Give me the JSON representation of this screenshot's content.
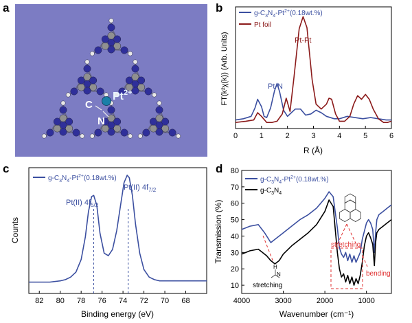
{
  "panels": {
    "a": {
      "letter": "a",
      "atom_labels": {
        "c": "C",
        "n": "N",
        "pt": "Pt",
        "pt_charge": "2+"
      },
      "colors": {
        "bg": "#7c7cc3",
        "n_atom": "#2f2f9a",
        "c_atom": "#909090",
        "h_atom": "#e8e8e8",
        "pt_atom": "#1a7fa8",
        "pt_label": "#e8f4ff"
      }
    },
    "b": {
      "letter": "b",
      "ylabel": "FT(k²χ(k)) (Arb. Units)",
      "xlabel": "R (Å)",
      "legend": {
        "s1_prefix": "g-C",
        "s1_sub1": "3",
        "s1_mid": "N",
        "s1_sub2": "4",
        "s1_mid2": "-Pt",
        "s1_sup": "2+",
        "s1_suffix": "(0.18wt.%)",
        "s2": "Pt foil"
      },
      "annotations": {
        "ptn": "Pt-N",
        "ptpt": "Pt-Pt"
      }
    },
    "c": {
      "letter": "c",
      "ylabel": "Counts",
      "xlabel": "Binding energy (eV)",
      "legend": {
        "s1_prefix": "g-C",
        "s1_sub1": "3",
        "s1_mid": "N",
        "s1_sub2": "4",
        "s1_mid2": "-Pt",
        "s1_sup": "2+",
        "s1_suffix": "(0.18wt.%)"
      },
      "annotations": {
        "p1_main": "Pt(II) 4f",
        "p1_sub": "5/2",
        "p2_main": "Pt(II) 4f",
        "p2_sub": "7/2"
      }
    },
    "d": {
      "letter": "d",
      "ylabel": "Transmission (%)",
      "xlabel": "Wavenumber (cm⁻¹)",
      "legend": {
        "s1_prefix": "g-C",
        "s1_sub1": "3",
        "s1_mid": "N",
        "s1_sub2": "4",
        "s1_mid2": "-Pt",
        "s1_sup": "2+",
        "s1_suffix": "(0.18wt.%)",
        "s2_prefix": "g-C",
        "s2_sub1": "3",
        "s2_mid": "N",
        "s2_sub2": "4"
      },
      "annotations": {
        "stretch1": "stretching",
        "stretch2": "stretching",
        "bending": "bending",
        "nh_n": "N",
        "nh_h": "H"
      }
    }
  },
  "chart_data": [
    {
      "panel": "b",
      "type": "line",
      "xlim": [
        0,
        6
      ],
      "ylim": [
        0,
        1
      ],
      "x_ticks": [
        0,
        1,
        2,
        3,
        4,
        5,
        6
      ],
      "y_ticks": [],
      "series": [
        {
          "name": "g-C3N4-Pt2+(0.18wt.%)",
          "color": "#3b4fa0",
          "x": [
            0.0,
            0.3,
            0.6,
            0.75,
            0.85,
            1.0,
            1.1,
            1.2,
            1.35,
            1.5,
            1.6,
            1.7,
            1.85,
            2.0,
            2.15,
            2.3,
            2.5,
            2.7,
            2.9,
            3.1,
            3.3,
            3.5,
            3.8,
            4.0,
            4.3,
            4.6,
            4.9,
            5.2,
            5.5,
            5.8,
            6.0
          ],
          "y": [
            0.07,
            0.08,
            0.1,
            0.17,
            0.24,
            0.18,
            0.1,
            0.09,
            0.17,
            0.31,
            0.37,
            0.3,
            0.15,
            0.1,
            0.13,
            0.16,
            0.16,
            0.11,
            0.12,
            0.15,
            0.13,
            0.1,
            0.08,
            0.08,
            0.1,
            0.09,
            0.08,
            0.09,
            0.08,
            0.07,
            0.07
          ]
        },
        {
          "name": "Pt foil",
          "color": "#8b1a1a",
          "x": [
            0.0,
            0.4,
            0.7,
            0.85,
            1.0,
            1.2,
            1.4,
            1.6,
            1.8,
            1.95,
            2.1,
            2.25,
            2.45,
            2.6,
            2.75,
            2.95,
            3.1,
            3.3,
            3.5,
            3.6,
            3.7,
            3.85,
            4.0,
            4.2,
            4.4,
            4.55,
            4.7,
            4.85,
            5.0,
            5.15,
            5.3,
            5.5,
            5.7,
            5.85,
            6.0
          ],
          "y": [
            0.05,
            0.06,
            0.07,
            0.13,
            0.1,
            0.05,
            0.05,
            0.06,
            0.12,
            0.25,
            0.14,
            0.42,
            0.82,
            0.92,
            0.83,
            0.4,
            0.2,
            0.16,
            0.2,
            0.25,
            0.24,
            0.12,
            0.06,
            0.06,
            0.1,
            0.2,
            0.27,
            0.24,
            0.28,
            0.24,
            0.16,
            0.08,
            0.05,
            0.05,
            0.06
          ]
        }
      ]
    },
    {
      "panel": "c",
      "type": "line",
      "xlim": [
        83,
        66
      ],
      "ylim": [
        0,
        1
      ],
      "x_ticks": [
        82,
        80,
        78,
        76,
        74,
        72,
        70,
        68
      ],
      "y_ticks": [],
      "dashed_lines": [
        76.8,
        73.5
      ],
      "series": [
        {
          "name": "g-C3N4-Pt2+(0.18wt.%)",
          "color": "#3b4fa0",
          "x": [
            83,
            82,
            81,
            80,
            79.5,
            79,
            78.5,
            78,
            77.6,
            77.3,
            77.0,
            76.8,
            76.5,
            76.2,
            75.8,
            75.4,
            75.0,
            74.6,
            74.2,
            73.9,
            73.6,
            73.4,
            73.1,
            72.8,
            72.4,
            72.0,
            71.5,
            71.0,
            70.5,
            70,
            69,
            68,
            67,
            66
          ],
          "y": [
            0.09,
            0.09,
            0.09,
            0.1,
            0.11,
            0.13,
            0.17,
            0.27,
            0.45,
            0.65,
            0.77,
            0.78,
            0.7,
            0.48,
            0.32,
            0.3,
            0.35,
            0.5,
            0.72,
            0.88,
            0.94,
            0.92,
            0.78,
            0.55,
            0.32,
            0.19,
            0.13,
            0.11,
            0.1,
            0.1,
            0.1,
            0.1,
            0.1,
            0.1
          ]
        }
      ]
    },
    {
      "panel": "d",
      "type": "line",
      "xlim": [
        4000,
        400
      ],
      "ylim": [
        5,
        80
      ],
      "x_ticks": [
        4000,
        3000,
        2000,
        1000
      ],
      "y_ticks": [
        10,
        20,
        30,
        40,
        50,
        60,
        70,
        80
      ],
      "series": [
        {
          "name": "g-C3N4-Pt2+(0.18wt.%)",
          "color": "#3b4fa0",
          "x": [
            4000,
            3800,
            3600,
            3450,
            3300,
            3200,
            3100,
            3000,
            2800,
            2600,
            2400,
            2200,
            2000,
            1900,
            1800,
            1700,
            1650,
            1600,
            1550,
            1500,
            1450,
            1400,
            1350,
            1300,
            1250,
            1200,
            1150,
            1100,
            1000,
            950,
            900,
            850,
            810,
            780,
            750,
            700,
            600,
            500,
            400
          ],
          "y": [
            44,
            46,
            47,
            42,
            36,
            38,
            40,
            42,
            46,
            50,
            53,
            57,
            63,
            67,
            64,
            45,
            33,
            29,
            27,
            30,
            25,
            29,
            24,
            28,
            24,
            27,
            30,
            38,
            48,
            50,
            48,
            44,
            30,
            42,
            50,
            53,
            55,
            57,
            59
          ]
        },
        {
          "name": "g-C3N4",
          "color": "#000000",
          "x": [
            4000,
            3800,
            3600,
            3400,
            3300,
            3200,
            3100,
            3000,
            2800,
            2600,
            2400,
            2200,
            2000,
            1900,
            1800,
            1700,
            1650,
            1600,
            1550,
            1500,
            1450,
            1400,
            1350,
            1300,
            1250,
            1200,
            1150,
            1100,
            1050,
            1000,
            950,
            900,
            850,
            810,
            780,
            750,
            700,
            600,
            500,
            400
          ],
          "y": [
            29,
            31,
            32,
            28,
            25,
            23,
            25,
            29,
            34,
            38,
            42,
            47,
            55,
            62,
            58,
            30,
            20,
            15,
            17,
            12,
            16,
            11,
            15,
            10,
            14,
            11,
            16,
            24,
            34,
            40,
            42,
            39,
            35,
            22,
            36,
            42,
            44,
            46,
            48,
            50
          ]
        }
      ]
    }
  ]
}
